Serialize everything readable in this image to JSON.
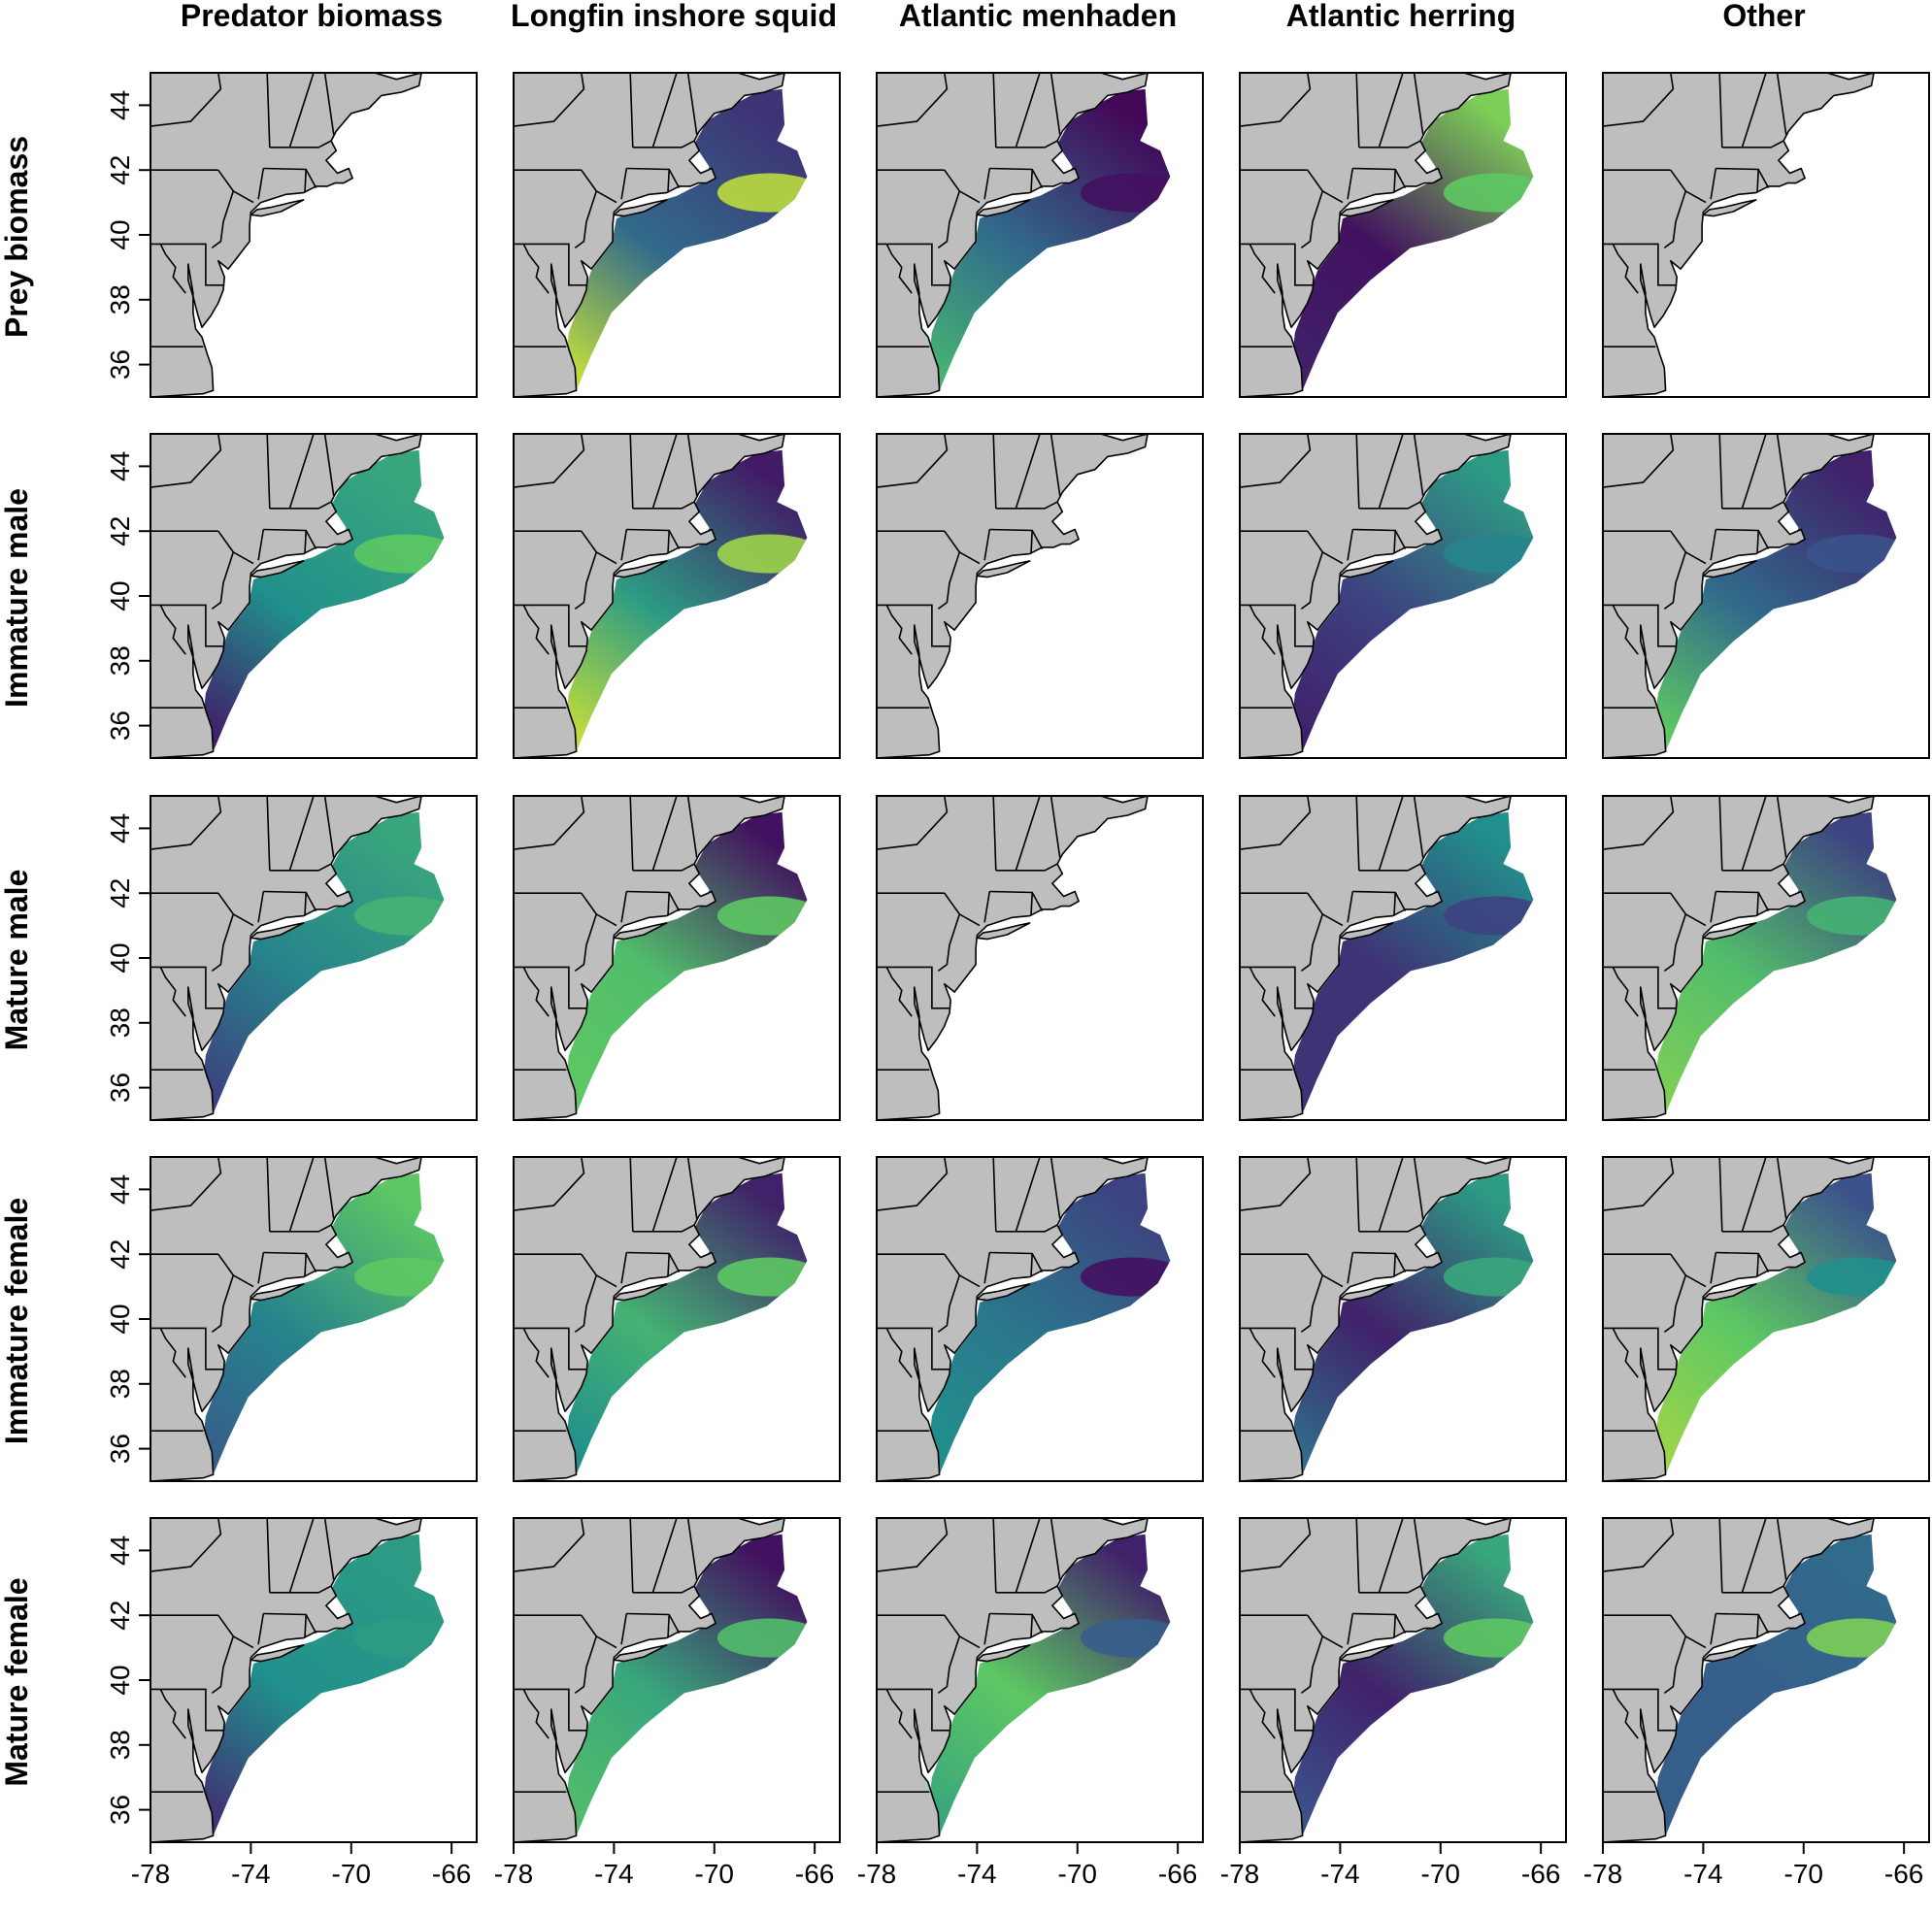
{
  "column_titles": [
    "Predator biomass",
    "Longfin inshore squid",
    "Atlantic menhaden",
    "Atlantic herring",
    "Other"
  ],
  "row_titles": [
    "Prey biomass",
    "Immature male",
    "Mature male",
    "Immature female",
    "Mature female"
  ],
  "x_ticks": [
    "-78",
    "-74",
    "-70",
    "-66"
  ],
  "y_ticks": [
    "44",
    "42",
    "40",
    "38",
    "36"
  ],
  "colormap": [
    "#440154",
    "#3b528b",
    "#21908c",
    "#5dc863",
    "#fde725"
  ],
  "land_color": "#bebebe",
  "chart_data": {
    "type": "heatmap",
    "axes": {
      "xlim": [
        -78,
        -65
      ],
      "ylim": [
        35,
        45
      ]
    },
    "panels": [
      {
        "row": "Prey biomass",
        "column": "Predator biomass",
        "values": null
      },
      {
        "row": "Prey biomass",
        "column": "Longfin inshore squid",
        "values": {
          "n": 0.35,
          "s": 0.9,
          "gulf": 0.15,
          "geo": 0.9
        }
      },
      {
        "row": "Prey biomass",
        "column": "Atlantic menhaden",
        "values": {
          "n": 0.35,
          "s": 0.65,
          "gulf": 0.02,
          "geo": 0.05
        }
      },
      {
        "row": "Prey biomass",
        "column": "Atlantic herring",
        "values": {
          "n": 0.05,
          "s": 0.1,
          "gulf": 0.8,
          "geo": 0.75
        }
      },
      {
        "row": "Prey biomass",
        "column": "Other",
        "values": null
      },
      {
        "row": "Immature male",
        "column": "Predator biomass",
        "values": {
          "n": 0.5,
          "s": 0.1,
          "gulf": 0.6,
          "geo": 0.75
        }
      },
      {
        "row": "Immature male",
        "column": "Longfin inshore squid",
        "values": {
          "n": 0.55,
          "s": 0.9,
          "gulf": 0.08,
          "geo": 0.85
        }
      },
      {
        "row": "Immature male",
        "column": "Atlantic menhaden",
        "values": null
      },
      {
        "row": "Immature male",
        "column": "Atlantic herring",
        "values": {
          "n": 0.2,
          "s": 0.1,
          "gulf": 0.55,
          "geo": 0.45
        }
      },
      {
        "row": "Immature male",
        "column": "Other",
        "values": {
          "n": 0.35,
          "s": 0.75,
          "gulf": 0.1,
          "geo": 0.25
        }
      },
      {
        "row": "Mature male",
        "column": "Predator biomass",
        "values": {
          "n": 0.45,
          "s": 0.2,
          "gulf": 0.6,
          "geo": 0.65
        }
      },
      {
        "row": "Mature male",
        "column": "Longfin inshore squid",
        "values": {
          "n": 0.7,
          "s": 0.75,
          "gulf": 0.05,
          "geo": 0.75
        }
      },
      {
        "row": "Mature male",
        "column": "Atlantic menhaden",
        "values": null
      },
      {
        "row": "Mature male",
        "column": "Atlantic herring",
        "values": {
          "n": 0.15,
          "s": 0.15,
          "gulf": 0.5,
          "geo": 0.2
        }
      },
      {
        "row": "Mature male",
        "column": "Other",
        "values": {
          "n": 0.7,
          "s": 0.8,
          "gulf": 0.2,
          "geo": 0.65
        }
      },
      {
        "row": "Immature female",
        "column": "Predator biomass",
        "values": {
          "n": 0.45,
          "s": 0.3,
          "gulf": 0.75,
          "geo": 0.75
        }
      },
      {
        "row": "Immature female",
        "column": "Longfin inshore squid",
        "values": {
          "n": 0.65,
          "s": 0.5,
          "gulf": 0.1,
          "geo": 0.75
        }
      },
      {
        "row": "Immature female",
        "column": "Atlantic menhaden",
        "values": {
          "n": 0.4,
          "s": 0.5,
          "gulf": 0.2,
          "geo": 0.05
        }
      },
      {
        "row": "Immature female",
        "column": "Atlantic herring",
        "values": {
          "n": 0.1,
          "s": 0.35,
          "gulf": 0.55,
          "geo": 0.6
        }
      },
      {
        "row": "Immature female",
        "column": "Other",
        "values": {
          "n": 0.75,
          "s": 0.85,
          "gulf": 0.25,
          "geo": 0.5
        }
      },
      {
        "row": "Mature female",
        "column": "Predator biomass",
        "values": {
          "n": 0.5,
          "s": 0.15,
          "gulf": 0.55,
          "geo": 0.55
        }
      },
      {
        "row": "Mature female",
        "column": "Longfin inshore squid",
        "values": {
          "n": 0.6,
          "s": 0.7,
          "gulf": 0.05,
          "geo": 0.7
        }
      },
      {
        "row": "Mature female",
        "column": "Atlantic menhaden",
        "values": {
          "n": 0.75,
          "s": 0.6,
          "gulf": 0.1,
          "geo": 0.3
        }
      },
      {
        "row": "Mature female",
        "column": "Atlantic herring",
        "values": {
          "n": 0.1,
          "s": 0.25,
          "gulf": 0.6,
          "geo": 0.75
        }
      },
      {
        "row": "Mature female",
        "column": "Other",
        "values": {
          "n": 0.3,
          "s": 0.3,
          "gulf": 0.35,
          "geo": 0.8
        }
      }
    ]
  }
}
